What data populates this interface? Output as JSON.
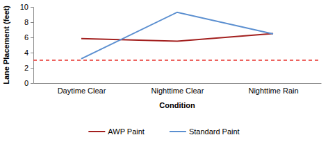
{
  "chart_data": {
    "type": "line",
    "x_label": "Condition",
    "y_label": "Lane Placement (feet)",
    "categories": [
      "Daytime Clear",
      "Nighttime Clear",
      "Nighttime Rain"
    ],
    "series": [
      {
        "name": "AWP Paint",
        "color": "#a3201f",
        "values": [
          5.85,
          5.5,
          6.5
        ]
      },
      {
        "name": "Standard Paint",
        "color": "#5b8fd0",
        "values": [
          3.2,
          9.3,
          6.45
        ]
      }
    ],
    "reference_lines": [
      {
        "value": 3,
        "color": "#e8312b",
        "line_style": "dashed"
      }
    ],
    "ylim": [
      0,
      10
    ],
    "yticks": [
      0,
      2,
      4,
      6,
      8,
      10
    ],
    "grid": false,
    "legend": "bottom"
  }
}
